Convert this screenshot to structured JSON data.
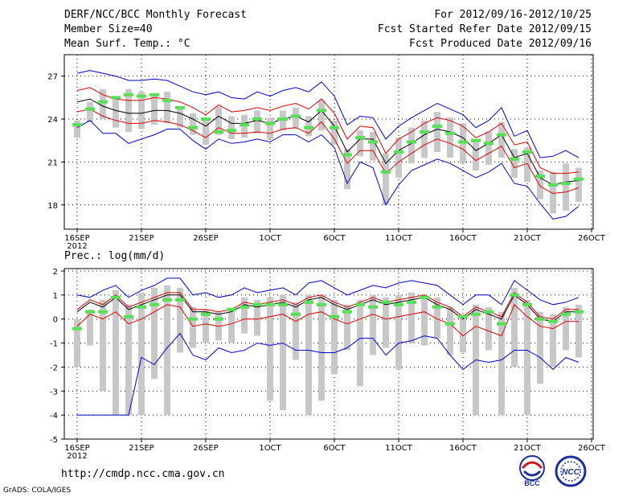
{
  "header": {
    "title": "DERF/NCC/BCC Monthly Forecast",
    "member_size": "Member Size=40",
    "variable": "Mean Surf. Temp.: °C",
    "period": "For 2012/09/16-2012/10/25",
    "refer_date": "Fcst Started Refer Date 2012/09/15",
    "produced_date": "Fcst Produced Date 2012/09/16"
  },
  "footer": {
    "url": "http://cmdp.ncc.cma.gov.cn",
    "credit": "GrADS: COLA/IGES",
    "logos": [
      "BCC",
      "NCC"
    ]
  },
  "colors": {
    "box": "#c8c8c8",
    "ensemble_mean": "#000000",
    "spread": "#e00000",
    "envelope": "#0000d0",
    "observed": "#55e055"
  },
  "chart_data": [
    {
      "type": "line",
      "title": "",
      "ylabel": "Mean Surf. Temp.: °C",
      "x_ticks": [
        "16SEP",
        "21SEP",
        "26SEP",
        "1OCT",
        "6OCT",
        "11OCT",
        "16OCT",
        "21OCT",
        "26OCT"
      ],
      "x_tick_year": "2012",
      "ylim": [
        16.3,
        28.5
      ],
      "y_ticks": [
        18,
        21,
        24,
        27
      ],
      "y_tick_labels": [
        "18",
        "21",
        "24",
        "27"
      ],
      "days": 40,
      "series": [
        {
          "name": "ensemble_mean",
          "values": [
            25.2,
            25.4,
            24.9,
            24.6,
            24.4,
            24.4,
            24.6,
            24.6,
            24.4,
            24.0,
            23.5,
            24.2,
            23.7,
            23.7,
            23.9,
            23.7,
            24.0,
            24.2,
            23.8,
            24.6,
            23.5,
            21.7,
            22.6,
            22.6,
            20.9,
            21.8,
            22.3,
            22.9,
            23.3,
            23.1,
            22.7,
            21.8,
            22.3,
            22.9,
            21.3,
            21.6,
            19.9,
            19.4,
            19.6,
            19.7
          ]
        },
        {
          "name": "upper_spread",
          "values": [
            26.0,
            26.2,
            25.7,
            25.4,
            25.3,
            25.3,
            25.5,
            25.4,
            25.2,
            24.8,
            24.3,
            25.0,
            24.5,
            24.6,
            24.8,
            24.6,
            24.9,
            25.1,
            24.7,
            25.4,
            24.4,
            22.6,
            23.5,
            23.4,
            21.6,
            22.6,
            23.1,
            23.7,
            24.1,
            23.9,
            23.5,
            22.7,
            23.1,
            23.7,
            22.2,
            22.4,
            20.6,
            20.2,
            20.2,
            20.3
          ]
        },
        {
          "name": "lower_spread",
          "values": [
            24.5,
            24.7,
            24.2,
            23.9,
            23.7,
            23.7,
            23.9,
            23.8,
            23.6,
            23.2,
            22.7,
            23.4,
            23.0,
            23.0,
            23.1,
            23.0,
            23.3,
            23.4,
            23.0,
            23.8,
            22.6,
            20.9,
            21.8,
            21.8,
            20.2,
            21.0,
            21.6,
            22.2,
            22.6,
            22.3,
            21.9,
            21.1,
            21.6,
            22.1,
            20.6,
            20.9,
            19.3,
            18.8,
            18.9,
            19.2
          ]
        },
        {
          "name": "upper_envelope",
          "values": [
            27.2,
            27.4,
            27.2,
            27.0,
            26.7,
            26.7,
            26.8,
            26.7,
            26.3,
            25.9,
            25.7,
            25.9,
            25.5,
            25.4,
            25.9,
            25.6,
            26.0,
            26.2,
            25.9,
            26.6,
            25.6,
            23.6,
            24.2,
            24.1,
            22.6,
            23.5,
            24.1,
            24.6,
            25.1,
            24.7,
            24.3,
            23.4,
            23.9,
            24.8,
            22.8,
            23.2,
            21.3,
            21.4,
            21.8,
            21.3
          ]
        },
        {
          "name": "lower_envelope",
          "values": [
            23.4,
            23.9,
            23.0,
            23.0,
            22.3,
            22.6,
            22.9,
            23.3,
            23.3,
            22.5,
            21.9,
            22.6,
            22.3,
            22.4,
            22.6,
            22.4,
            22.9,
            22.9,
            22.4,
            22.9,
            22.0,
            19.5,
            21.0,
            20.6,
            18.0,
            19.4,
            20.4,
            20.8,
            21.2,
            20.9,
            20.4,
            19.9,
            20.3,
            20.9,
            19.5,
            19.3,
            18.1,
            17.0,
            17.2,
            17.9
          ]
        },
        {
          "name": "box_max",
          "values": [
            23.9,
            25.2,
            26.1,
            25.5,
            26.1,
            25.9,
            25.7,
            25.9,
            24.9,
            24.4,
            23.9,
            24.9,
            24.2,
            24.3,
            24.6,
            24.1,
            24.6,
            24.8,
            24.2,
            25.3,
            23.9,
            21.9,
            23.2,
            23.1,
            21.6,
            22.7,
            23.4,
            23.9,
            24.5,
            24.1,
            23.7,
            22.5,
            23.1,
            23.8,
            21.9,
            22.0,
            20.4,
            20.3,
            20.9,
            20.6
          ]
        },
        {
          "name": "box_min",
          "values": [
            22.7,
            23.8,
            24.0,
            23.4,
            23.1,
            23.3,
            23.6,
            23.7,
            23.4,
            22.9,
            22.2,
            22.9,
            22.6,
            22.7,
            23.0,
            22.6,
            23.2,
            23.3,
            22.8,
            23.2,
            22.2,
            19.1,
            21.4,
            21.1,
            18.0,
            19.9,
            20.9,
            21.3,
            21.7,
            21.3,
            20.9,
            20.4,
            20.8,
            21.3,
            19.9,
            19.6,
            18.4,
            17.4,
            17.6,
            18.2
          ]
        },
        {
          "name": "observed",
          "values": [
            23.6,
            24.7,
            25.2,
            25.5,
            25.7,
            25.6,
            25.7,
            25.3,
            24.8,
            23.4,
            24.0,
            23.1,
            23.2,
            23.6,
            24.0,
            23.7,
            24.0,
            24.2,
            23.4,
            24.6,
            23.4,
            21.5,
            22.7,
            22.4,
            20.3,
            21.7,
            22.4,
            23.1,
            23.5,
            23.0,
            22.4,
            22.5,
            22.3,
            22.9,
            21.2,
            21.7,
            20.0,
            19.4,
            19.5,
            19.8
          ]
        }
      ]
    },
    {
      "type": "line",
      "title": "Prec.: log(mm/d)",
      "ylabel": "Prec.: log(mm/d)",
      "x_ticks": [
        "16SEP",
        "21SEP",
        "26SEP",
        "1OCT",
        "6OCT",
        "11OCT",
        "16OCT",
        "21OCT",
        "26OCT"
      ],
      "x_tick_year": "2012",
      "ylim": [
        -5,
        2.1
      ],
      "y_ticks": [
        -5,
        -4,
        -3,
        -2,
        -1,
        0,
        1,
        2
      ],
      "y_tick_labels": [
        "-5",
        "-4",
        "-3",
        "-2",
        "-1",
        "0",
        "1",
        "2"
      ],
      "days": 40,
      "series": [
        {
          "name": "ensemble_mean",
          "values": [
            0.3,
            0.7,
            0.5,
            0.9,
            0.4,
            0.6,
            0.8,
            1.0,
            1.0,
            0.3,
            0.3,
            0.2,
            0.3,
            0.6,
            0.5,
            0.6,
            0.7,
            0.5,
            0.8,
            0.9,
            0.6,
            0.4,
            0.6,
            0.8,
            0.6,
            0.7,
            0.8,
            0.9,
            0.6,
            0.4,
            0.0,
            0.4,
            0.2,
            0.0,
            1.0,
            0.6,
            0.0,
            -0.1,
            0.3,
            0.3
          ]
        },
        {
          "name": "upper_spread",
          "values": [
            0.4,
            0.8,
            0.6,
            1.0,
            0.5,
            0.7,
            0.9,
            1.1,
            1.1,
            0.4,
            0.4,
            0.3,
            0.4,
            0.7,
            0.6,
            0.7,
            0.8,
            0.6,
            0.9,
            1.0,
            0.7,
            0.5,
            0.7,
            0.9,
            0.7,
            0.8,
            0.9,
            1.0,
            0.7,
            0.5,
            0.1,
            0.5,
            0.3,
            0.1,
            1.1,
            0.7,
            0.1,
            0.0,
            0.4,
            0.4
          ]
        },
        {
          "name": "lower_spread",
          "values": [
            -0.3,
            0.2,
            0.0,
            0.3,
            -0.2,
            0.0,
            0.3,
            0.6,
            0.5,
            -0.3,
            -0.2,
            -0.3,
            -0.2,
            0.0,
            0.0,
            0.1,
            0.2,
            -0.1,
            0.2,
            0.3,
            0.0,
            -0.2,
            0.0,
            0.2,
            0.0,
            0.1,
            0.2,
            0.3,
            0.0,
            -0.2,
            -0.7,
            -0.3,
            -0.5,
            -0.7,
            0.6,
            0.1,
            -0.3,
            -0.4,
            -0.1,
            -0.1
          ]
        },
        {
          "name": "upper_envelope",
          "values": [
            1.0,
            0.9,
            1.2,
            1.4,
            0.9,
            1.2,
            1.4,
            1.7,
            1.7,
            1.0,
            1.1,
            0.9,
            1.0,
            1.3,
            1.1,
            1.2,
            1.3,
            1.0,
            1.5,
            1.6,
            1.3,
            1.0,
            1.2,
            1.4,
            1.3,
            1.5,
            1.6,
            1.5,
            1.4,
            1.0,
            0.6,
            1.0,
            1.0,
            0.6,
            1.6,
            1.2,
            0.8,
            0.6,
            0.7,
            0.9
          ]
        },
        {
          "name": "lower_envelope",
          "values": [
            -4.0,
            -4.0,
            -4.0,
            -4.0,
            -4.0,
            -1.6,
            -1.9,
            -1.2,
            -0.6,
            -1.5,
            -1.7,
            -1.2,
            -1.4,
            -1.3,
            -1.0,
            -1.1,
            -1.0,
            -1.3,
            -1.3,
            -1.4,
            -1.4,
            -1.2,
            -0.8,
            -0.8,
            -1.5,
            -1.0,
            -0.9,
            -0.7,
            -0.8,
            -1.5,
            -2.1,
            -1.7,
            -1.8,
            -1.7,
            -1.3,
            -1.3,
            -1.6,
            -2.1,
            -1.6,
            -1.8
          ]
        },
        {
          "name": "box_max",
          "values": [
            0.0,
            0.4,
            0.8,
            1.2,
            0.6,
            1.1,
            1.3,
            1.4,
            1.3,
            0.5,
            0.4,
            0.3,
            0.4,
            0.9,
            0.8,
            0.9,
            1.0,
            0.7,
            1.0,
            1.0,
            0.8,
            0.6,
            0.8,
            1.0,
            0.9,
            1.0,
            1.1,
            1.0,
            0.9,
            0.5,
            0.2,
            0.6,
            0.5,
            0.3,
            1.3,
            0.8,
            0.3,
            0.2,
            0.5,
            0.6
          ]
        },
        {
          "name": "box_min",
          "values": [
            -2.0,
            -1.1,
            -3.0,
            -4.0,
            -4.0,
            -4.0,
            -2.5,
            -4.0,
            -1.4,
            -1.2,
            -1.0,
            -0.9,
            -1.0,
            -0.6,
            -0.7,
            -3.4,
            -3.8,
            -1.7,
            -4.0,
            -3.4,
            -2.3,
            -1.3,
            -2.8,
            -1.5,
            -1.2,
            -2.1,
            -1.0,
            -1.1,
            -0.8,
            -1.5,
            -1.4,
            -4.0,
            -1.3,
            -4.0,
            -2.0,
            -4.0,
            -2.7,
            -2.0,
            -1.3,
            -1.6
          ]
        },
        {
          "name": "observed",
          "values": [
            -0.4,
            0.3,
            0.3,
            0.9,
            0.1,
            0.5,
            0.6,
            0.8,
            0.8,
            0.0,
            0.2,
            0.0,
            0.4,
            0.5,
            0.6,
            0.6,
            0.6,
            0.2,
            0.7,
            0.6,
            0.1,
            0.3,
            0.6,
            0.5,
            0.7,
            0.6,
            0.7,
            0.9,
            0.5,
            -0.2,
            0.1,
            0.2,
            0.3,
            -0.2,
            1.0,
            0.6,
            0.0,
            -0.1,
            0.2,
            0.3
          ]
        }
      ]
    }
  ]
}
